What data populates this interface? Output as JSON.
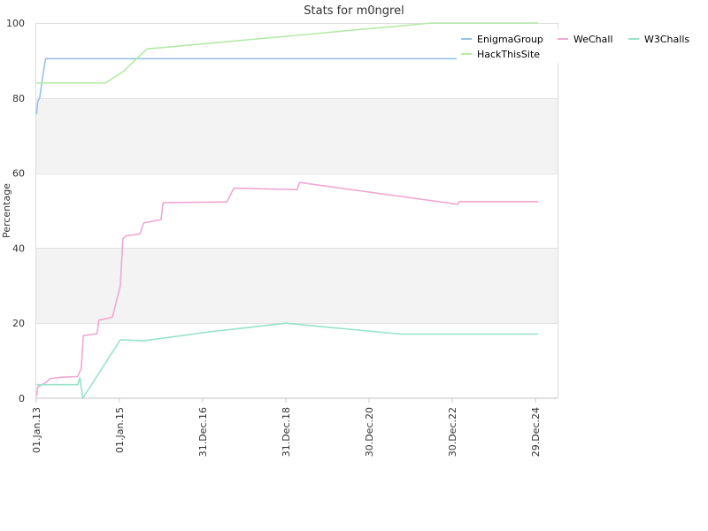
{
  "chart_data": {
    "type": "line",
    "title": "Stats for m0ngrel",
    "xlabel": "",
    "ylabel": "Percentage",
    "ylim": [
      0,
      100
    ],
    "yticks": [
      "0",
      "20",
      "40",
      "60",
      "80",
      "100"
    ],
    "xticks": [
      "01.Jan.13",
      "01.Jan.15",
      "31.Dec.16",
      "31.Dec.18",
      "30.Dec.20",
      "30.Dec.22",
      "29.Dec.24"
    ],
    "xlim": [
      "2012-12-26",
      "2025-07-10"
    ],
    "grid_bands": true,
    "legend_position": "top-right",
    "series": [
      {
        "name": "EnigmaGroup",
        "color": "#95c2e8",
        "points": [
          [
            "2013-01-05",
            75.7
          ],
          [
            "2013-01-15",
            79.0
          ],
          [
            "2013-02-01",
            80.0
          ],
          [
            "2013-03-01",
            86.0
          ],
          [
            "2013-03-25",
            90.5
          ],
          [
            "2017-01-01",
            90.5
          ],
          [
            "2023-05-20",
            90.5
          ]
        ]
      },
      {
        "name": "WeChall",
        "color": "#f0a8d0",
        "points": [
          [
            "2013-01-05",
            0.5
          ],
          [
            "2013-01-15",
            3.0
          ],
          [
            "2013-04-01",
            4.3
          ],
          [
            "2013-05-01",
            5.2
          ],
          [
            "2013-08-01",
            5.6
          ],
          [
            "2014-01-01",
            5.8
          ],
          [
            "2014-02-01",
            8.0
          ],
          [
            "2014-02-20",
            16.7
          ],
          [
            "2014-06-20",
            17.2
          ],
          [
            "2014-07-05",
            20.8
          ],
          [
            "2014-11-01",
            21.6
          ],
          [
            "2015-01-10",
            30.0
          ],
          [
            "2015-02-01",
            42.5
          ],
          [
            "2015-03-01",
            43.3
          ],
          [
            "2015-07-01",
            43.8
          ],
          [
            "2015-08-01",
            46.7
          ],
          [
            "2016-01-01",
            47.6
          ],
          [
            "2016-01-20",
            52.1
          ],
          [
            "2017-08-01",
            52.3
          ],
          [
            "2017-10-01",
            56.0
          ],
          [
            "2019-04-10",
            55.6
          ],
          [
            "2019-05-01",
            57.5
          ],
          [
            "2023-02-15",
            51.7
          ],
          [
            "2023-03-01",
            52.4
          ],
          [
            "2025-01-20",
            52.4
          ]
        ]
      },
      {
        "name": "W3Challs",
        "color": "#98e3c6",
        "points": [
          [
            "2013-01-05",
            3.6
          ],
          [
            "2014-01-01",
            3.6
          ],
          [
            "2014-01-20",
            5.5
          ],
          [
            "2014-02-15",
            0.0
          ],
          [
            "2015-01-10",
            15.6
          ],
          [
            "2015-08-01",
            15.3
          ],
          [
            "2017-03-01",
            17.7
          ],
          [
            "2018-12-31",
            20.0
          ],
          [
            "2021-10-01",
            17.1
          ],
          [
            "2025-01-20",
            17.1
          ]
        ]
      },
      {
        "name": "HackThisSite",
        "color": "#b4eaa7",
        "points": [
          [
            "2013-01-05",
            84.0
          ],
          [
            "2014-09-01",
            84.0
          ],
          [
            "2015-02-01",
            87.0
          ],
          [
            "2015-09-01",
            93.1
          ],
          [
            "2022-07-01",
            100.0
          ],
          [
            "2025-01-20",
            100.0
          ]
        ]
      }
    ]
  }
}
